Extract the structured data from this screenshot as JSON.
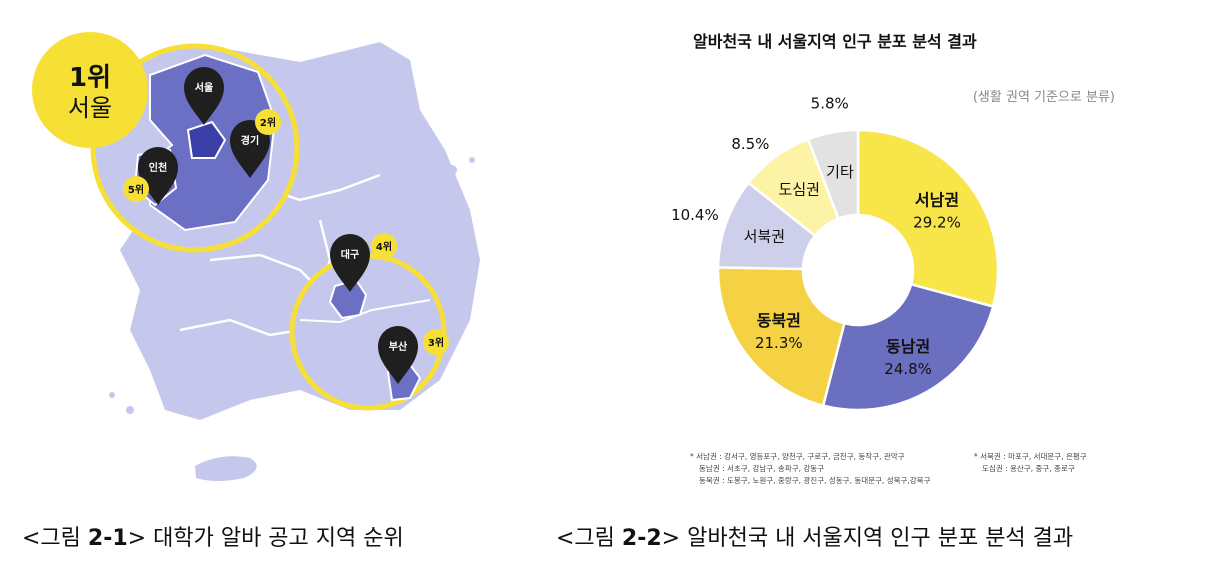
{
  "map": {
    "highlight_rank_label": "1위",
    "highlight_city": "서울",
    "pins": [
      {
        "city": "서울",
        "rank": ""
      },
      {
        "city": "경기",
        "rank": "2위"
      },
      {
        "city": "인천",
        "rank": "5위"
      },
      {
        "city": "대구",
        "rank": "4위"
      },
      {
        "city": "부산",
        "rank": "3위"
      }
    ],
    "colors": {
      "land": "#c5c8ec",
      "region": "#6b70c4",
      "dark_region": "#3a3fa8",
      "accent": "#f7e036",
      "pin": "#1f1f1f"
    }
  },
  "chart_data": {
    "type": "pie",
    "donut": true,
    "title": "알바천국 내 서울지역 인구 분포 분석 결과",
    "subtitle": "(생활 권역 기준으로 분류)",
    "slices": [
      {
        "label": "서남권",
        "value": 29.2,
        "value_label": "29.2%",
        "color": "#f8e54a",
        "bold": true
      },
      {
        "label": "동남권",
        "value": 24.8,
        "value_label": "24.8%",
        "color": "#6a70bf",
        "bold": true
      },
      {
        "label": "동북권",
        "value": 21.3,
        "value_label": "21.3%",
        "color": "#f5d144",
        "bold": true
      },
      {
        "label": "서북권",
        "value": 10.4,
        "value_label": "10.4%",
        "color": "#cdcfeb",
        "bold": false
      },
      {
        "label": "도심권",
        "value": 8.5,
        "value_label": "8.5%",
        "color": "#fdf3a6",
        "bold": false
      },
      {
        "label": "기타",
        "value": 5.8,
        "value_label": "5.8%",
        "color": "#e2e2e2",
        "bold": false
      }
    ],
    "notes": [
      "* 서남권 : 강서구, 영등포구, 양천구, 구로구, 금천구, 동작구, 관악구",
      "동남권 : 서초구, 강남구, 송파구, 강동구",
      "동북권 : 도봉구, 노원구, 중랑구, 광진구, 성동구, 동대문구, 성북구,강북구",
      "* 서북권 : 마포구, 서대문구, 은평구",
      "도심권 : 용산구, 중구, 종로구"
    ]
  },
  "captions": {
    "left_prefix": "<그림 ",
    "left_num": "2-1",
    "left_suffix": "> ",
    "left_text": "대학가 알바 공고 지역 순위",
    "right_prefix": "<그림 ",
    "right_num": "2-2",
    "right_suffix": "> ",
    "right_text": "알바천국 내 서울지역 인구 분포 분석 결과"
  }
}
